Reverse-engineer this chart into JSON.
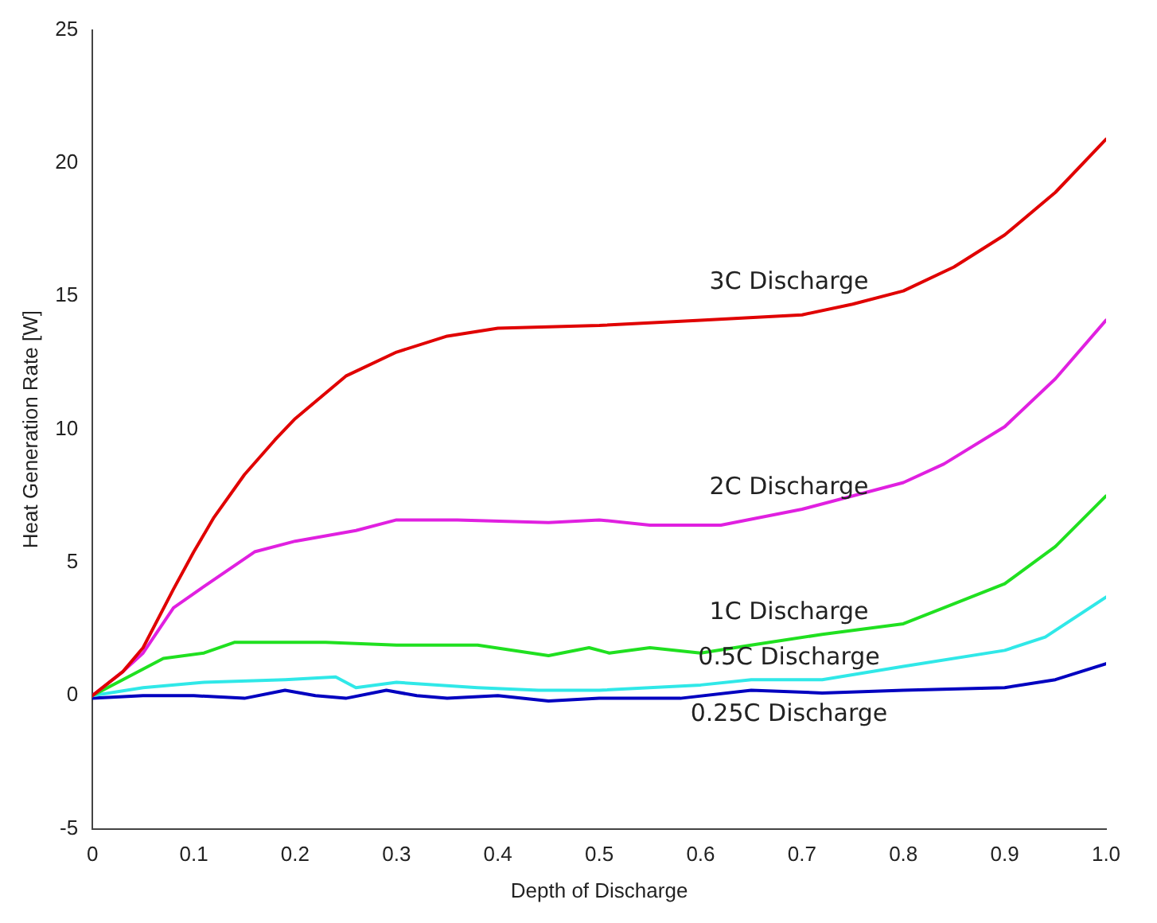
{
  "chart_data": {
    "type": "line",
    "xlabel": "Depth of Discharge",
    "ylabel": "Heat Generation Rate [W]",
    "xlim": [
      0,
      1
    ],
    "ylim": [
      -5,
      25
    ],
    "xticks": [
      0,
      0.1,
      0.2,
      0.3,
      0.4,
      0.5,
      0.6,
      0.7,
      0.8,
      0.9,
      {
        "value": 1,
        "label": "1.0"
      }
    ],
    "yticks": [
      -5,
      0,
      5,
      10,
      15,
      20,
      25
    ],
    "grid": false,
    "legend": false,
    "marker": "none",
    "line_style": "solid",
    "series": [
      {
        "name": "3C Discharge",
        "color": "#e00000",
        "x": [
          0,
          0.03,
          0.05,
          0.08,
          0.1,
          0.12,
          0.15,
          0.18,
          0.2,
          0.25,
          0.3,
          0.35,
          0.4,
          0.5,
          0.6,
          0.7,
          0.75,
          0.8,
          0.85,
          0.9,
          0.95,
          1.0
        ],
        "values": [
          0,
          0.9,
          1.8,
          4.0,
          5.4,
          6.7,
          8.3,
          9.6,
          10.4,
          12.0,
          12.9,
          13.5,
          13.8,
          13.9,
          14.1,
          14.3,
          14.7,
          15.2,
          16.1,
          17.3,
          18.9,
          20.9
        ]
      },
      {
        "name": "2C Discharge",
        "color": "#e020e0",
        "x": [
          0,
          0.03,
          0.05,
          0.08,
          0.11,
          0.16,
          0.2,
          0.26,
          0.3,
          0.36,
          0.45,
          0.5,
          0.55,
          0.62,
          0.7,
          0.8,
          0.84,
          0.9,
          0.95,
          1.0
        ],
        "values": [
          0,
          0.9,
          1.6,
          3.3,
          4.1,
          5.4,
          5.8,
          6.2,
          6.6,
          6.6,
          6.5,
          6.6,
          6.4,
          6.4,
          7.0,
          8.0,
          8.7,
          10.1,
          11.9,
          14.1
        ]
      },
      {
        "name": "1C Discharge",
        "color": "#20e020",
        "x": [
          0,
          0.03,
          0.07,
          0.11,
          0.14,
          0.23,
          0.3,
          0.38,
          0.45,
          0.49,
          0.51,
          0.55,
          0.6,
          0.65,
          0.72,
          0.8,
          0.9,
          0.95,
          1.0
        ],
        "values": [
          0,
          0.6,
          1.4,
          1.6,
          2.0,
          2.0,
          1.9,
          1.9,
          1.5,
          1.8,
          1.6,
          1.8,
          1.6,
          1.9,
          2.3,
          2.7,
          4.2,
          5.6,
          7.5
        ]
      },
      {
        "name": "0.5C Discharge",
        "color": "#30e8e8",
        "x": [
          0,
          0.05,
          0.11,
          0.19,
          0.24,
          0.26,
          0.3,
          0.38,
          0.44,
          0.5,
          0.6,
          0.65,
          0.72,
          0.8,
          0.9,
          0.94,
          1.0
        ],
        "values": [
          0,
          0.3,
          0.5,
          0.6,
          0.7,
          0.3,
          0.5,
          0.3,
          0.2,
          0.2,
          0.4,
          0.6,
          0.6,
          1.1,
          1.7,
          2.2,
          3.7
        ]
      },
      {
        "name": "0.25C Discharge",
        "color": "#0000c0",
        "x": [
          0,
          0.05,
          0.1,
          0.15,
          0.19,
          0.22,
          0.25,
          0.29,
          0.32,
          0.35,
          0.4,
          0.45,
          0.5,
          0.58,
          0.65,
          0.72,
          0.8,
          0.9,
          0.95,
          1.0
        ],
        "values": [
          -0.1,
          0,
          0,
          -0.1,
          0.2,
          0,
          -0.1,
          0.2,
          0,
          -0.1,
          0,
          -0.2,
          -0.1,
          -0.1,
          0.2,
          0.1,
          0.2,
          0.3,
          0.6,
          1.2
        ]
      }
    ]
  }
}
